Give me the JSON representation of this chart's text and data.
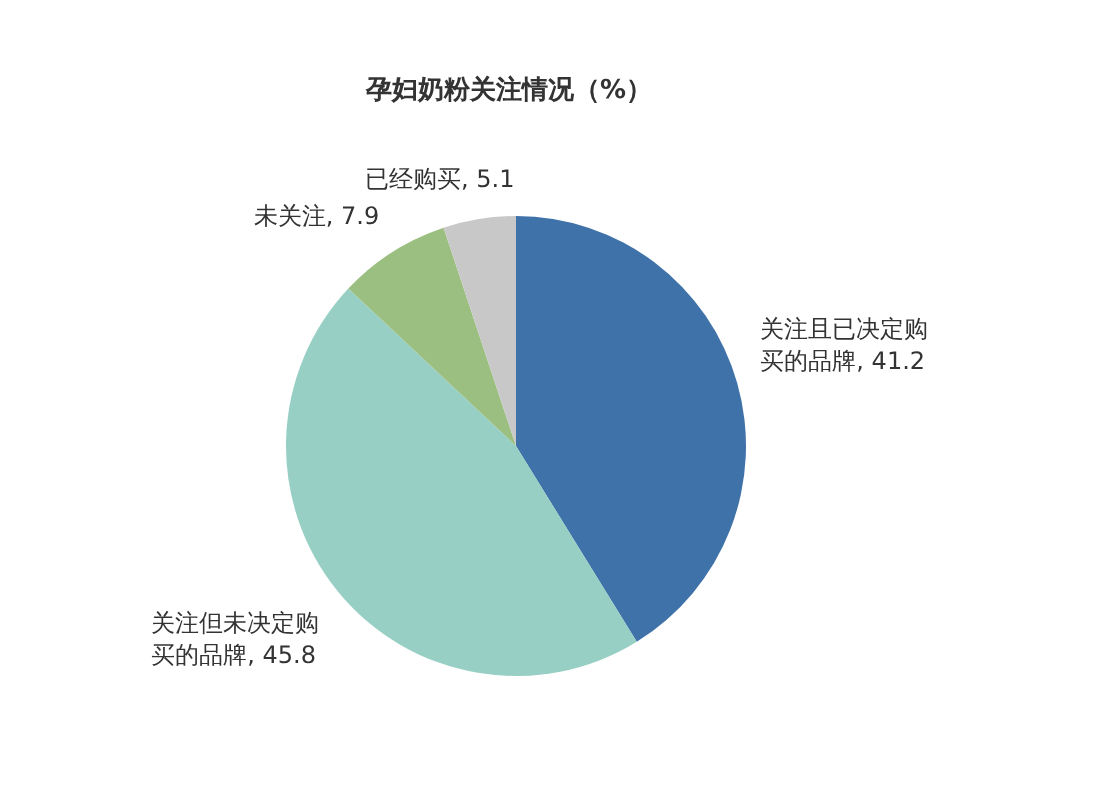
{
  "chart_data": {
    "type": "pie",
    "title": "孕妇奶粉关注情况（%）",
    "categories": [
      "关注且已决定购买的品牌",
      "关注但未决定购买的品牌",
      "未关注",
      "已经购买"
    ],
    "values": [
      41.2,
      45.8,
      7.9,
      5.1
    ],
    "colors": [
      "#3e72a9",
      "#97cfc4",
      "#9bbf80",
      "#c8c8c8"
    ],
    "value_labels": [
      ", 41.2",
      ", 45.8",
      ", 7.9",
      ", 5.1"
    ],
    "legend": false
  }
}
